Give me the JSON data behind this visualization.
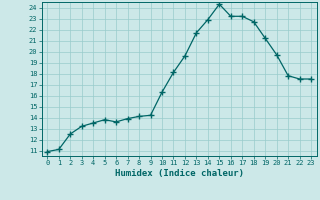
{
  "x": [
    0,
    1,
    2,
    3,
    4,
    5,
    6,
    7,
    8,
    9,
    10,
    11,
    12,
    13,
    14,
    15,
    16,
    17,
    18,
    19,
    20,
    21,
    22,
    23
  ],
  "y": [
    10.9,
    11.1,
    12.5,
    13.2,
    13.5,
    13.8,
    13.6,
    13.9,
    14.1,
    14.2,
    16.3,
    18.1,
    19.6,
    21.7,
    22.9,
    24.3,
    23.2,
    23.2,
    22.7,
    21.2,
    19.7,
    17.8,
    17.5,
    17.5
  ],
  "xlabel": "Humidex (Indice chaleur)",
  "bg_color": "#cce8e8",
  "line_color": "#006666",
  "marker_color": "#006666",
  "grid_color": "#99cccc",
  "tick_color": "#006666",
  "spine_color": "#006666",
  "xlim": [
    -0.5,
    23.5
  ],
  "ylim": [
    10.5,
    24.5
  ],
  "yticks": [
    11,
    12,
    13,
    14,
    15,
    16,
    17,
    18,
    19,
    20,
    21,
    22,
    23,
    24
  ],
  "xticks": [
    0,
    1,
    2,
    3,
    4,
    5,
    6,
    7,
    8,
    9,
    10,
    11,
    12,
    13,
    14,
    15,
    16,
    17,
    18,
    19,
    20,
    21,
    22,
    23
  ],
  "tick_fontsize": 5,
  "xlabel_fontsize": 6.5
}
